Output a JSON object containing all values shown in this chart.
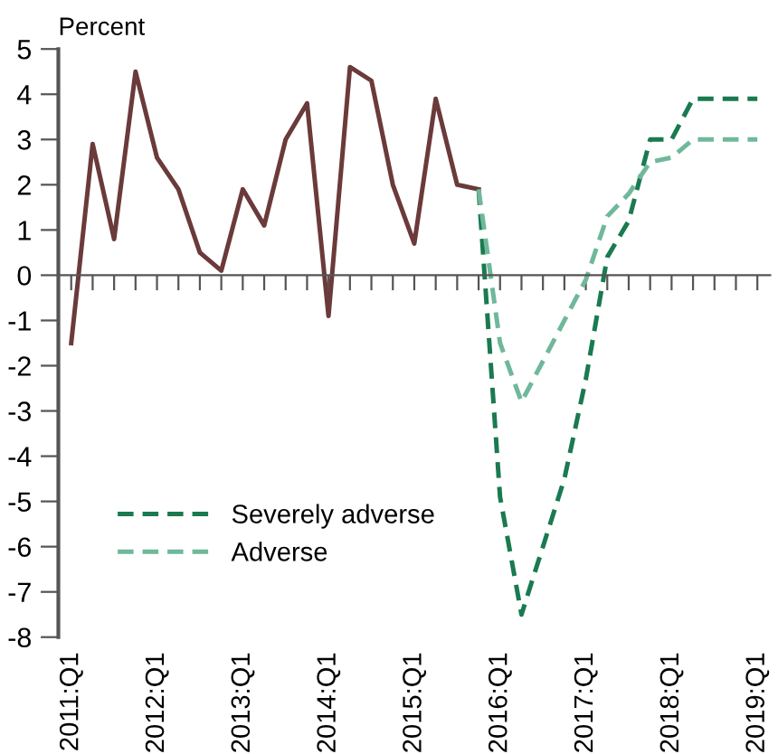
{
  "chart_data": {
    "type": "line",
    "ylabel": "Percent",
    "categories": [
      "2011:Q1",
      null,
      null,
      null,
      "2012:Q1",
      null,
      null,
      null,
      "2013:Q1",
      null,
      null,
      null,
      "2014:Q1",
      null,
      null,
      null,
      "2015:Q1",
      null,
      null,
      null,
      "2016:Q1",
      null,
      null,
      null,
      "2017:Q1",
      null,
      null,
      null,
      "2018:Q1",
      null,
      null,
      null,
      "2019:Q1"
    ],
    "series": [
      {
        "color": "#6b3a3a",
        "line_style": "solid",
        "values": [
          -1.5,
          2.9,
          0.8,
          4.5,
          2.6,
          1.9,
          0.5,
          0.1,
          1.9,
          1.1,
          3.0,
          3.8,
          -0.9,
          4.6,
          4.3,
          2.0,
          0.7,
          3.9,
          2.0,
          1.9,
          null,
          null,
          null,
          null,
          null,
          null,
          null,
          null,
          null,
          null,
          null,
          null,
          null
        ]
      },
      {
        "name": "Severely adverse",
        "color": "#1a7a50",
        "line_style": "dashed",
        "values": [
          null,
          null,
          null,
          null,
          null,
          null,
          null,
          null,
          null,
          null,
          null,
          null,
          null,
          null,
          null,
          null,
          null,
          null,
          null,
          1.9,
          -4.9,
          -7.5,
          -6.0,
          -4.5,
          -2.3,
          0.4,
          1.2,
          3.0,
          3.0,
          3.9,
          3.9,
          3.9,
          3.9
        ]
      },
      {
        "name": "Adverse",
        "color": "#6fb89a",
        "line_style": "dashed",
        "values": [
          null,
          null,
          null,
          null,
          null,
          null,
          null,
          null,
          null,
          null,
          null,
          null,
          null,
          null,
          null,
          null,
          null,
          null,
          null,
          1.9,
          -1.5,
          -2.8,
          -1.9,
          -1.0,
          -0.1,
          1.3,
          1.8,
          2.5,
          2.6,
          3.0,
          3.0,
          3.0,
          3.0
        ]
      }
    ],
    "ylim": [
      -8,
      5
    ],
    "yticks": [
      -8,
      -7,
      -6,
      -5,
      -4,
      -3,
      -2,
      -1,
      0,
      1,
      2,
      3,
      4,
      5
    ],
    "legend": "bottom left",
    "marker": "none"
  }
}
